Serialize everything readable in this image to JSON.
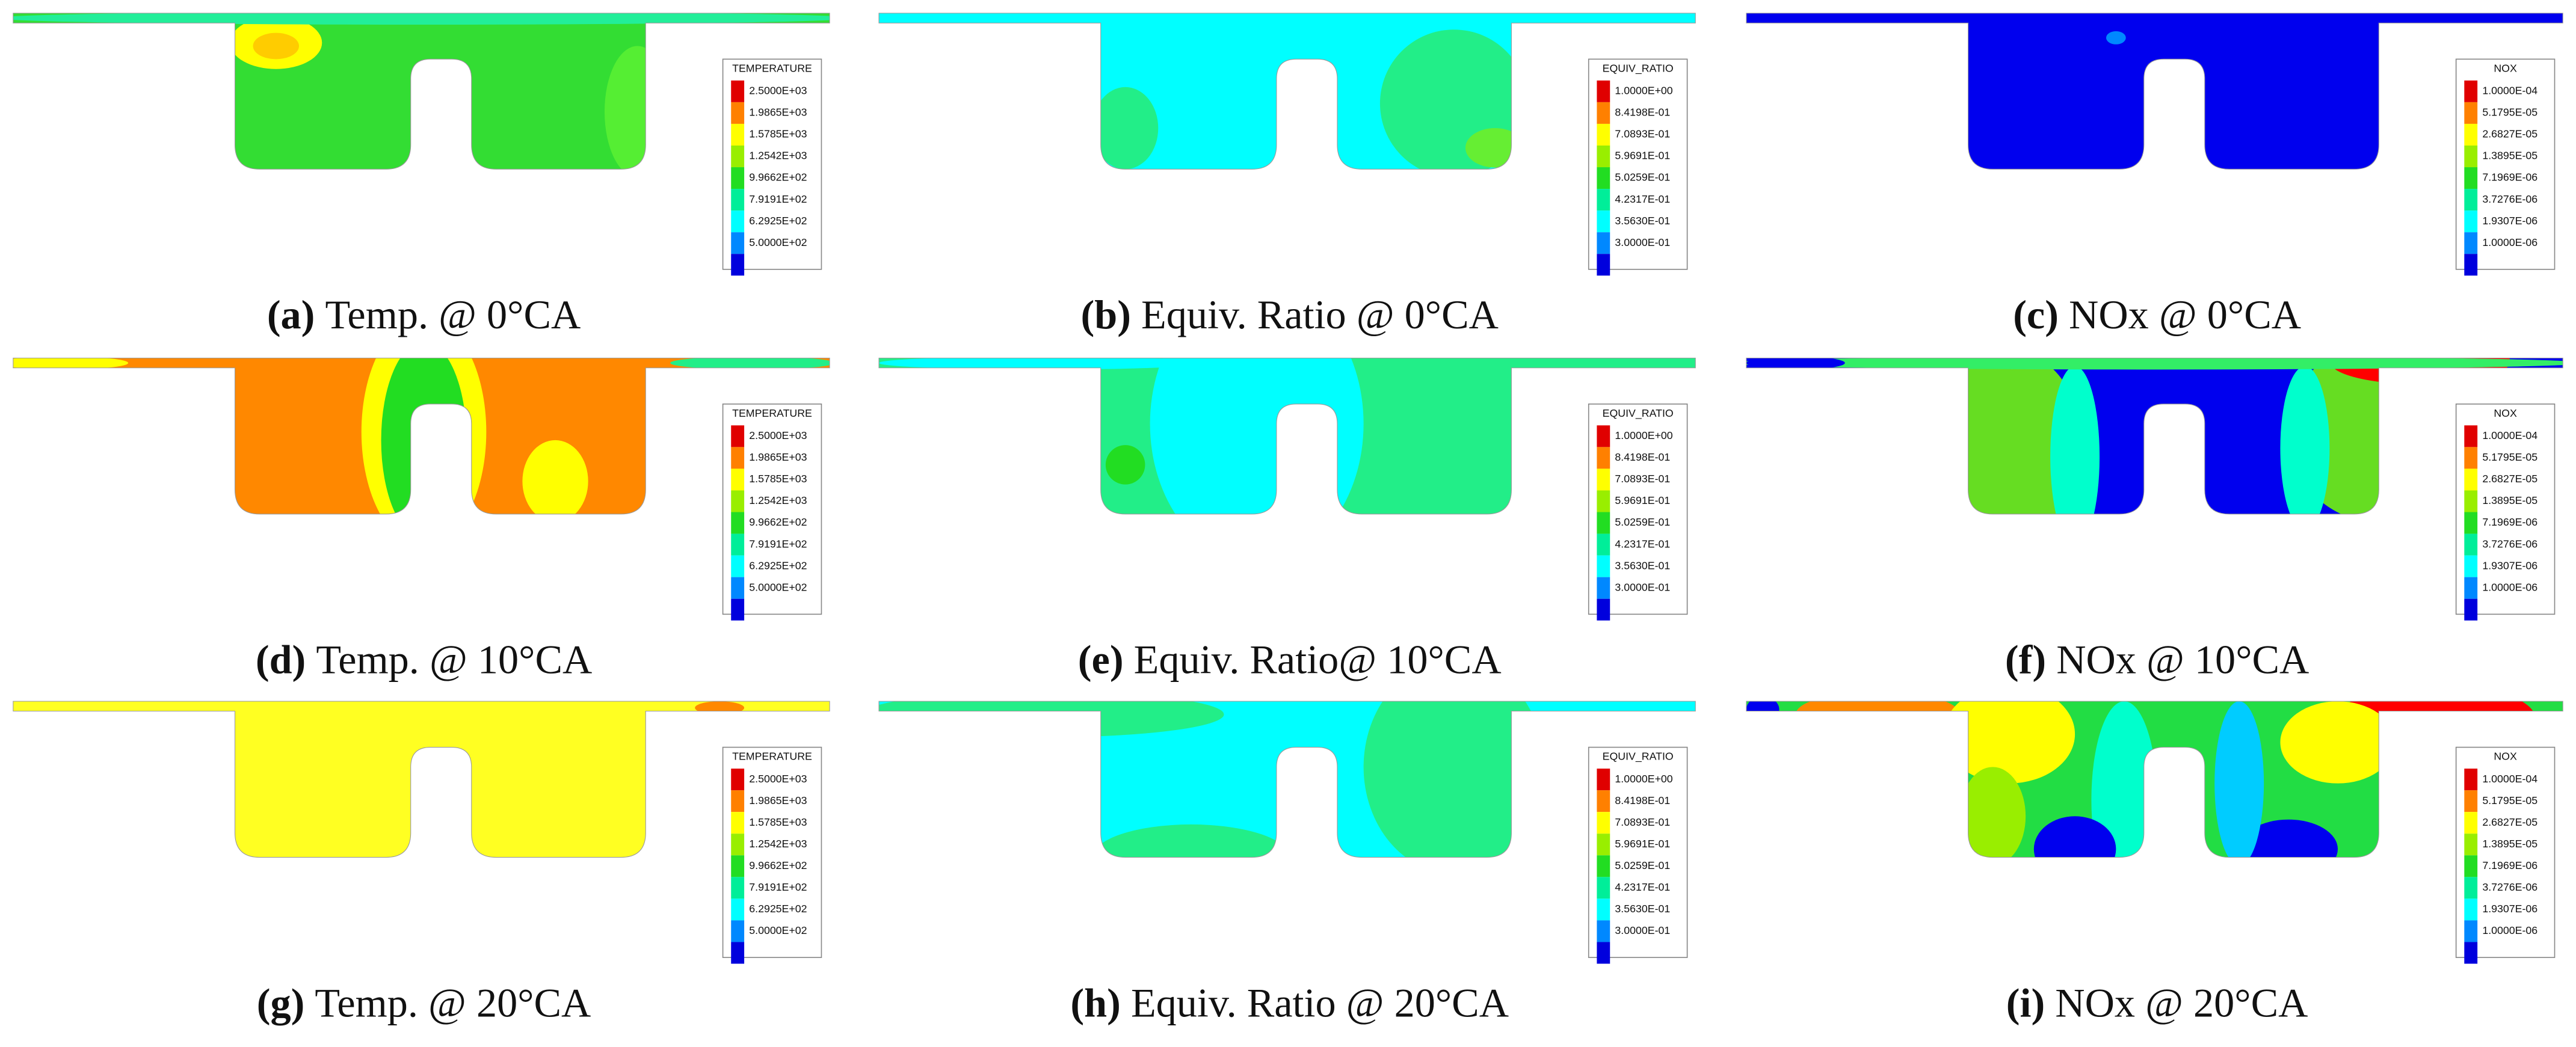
{
  "panels": [
    {
      "tag": "(a)",
      "caption": "Temp. @ 0°CA",
      "legend": {
        "title": "TEMPERATURE",
        "labels": [
          "2.5000E+03",
          "1.9865E+03",
          "1.5785E+03",
          "1.2542E+03",
          "9.9662E+02",
          "7.9191E+02",
          "6.2925E+02",
          "5.0000E+02"
        ]
      }
    },
    {
      "tag": "(b)",
      "caption": "Equiv. Ratio @ 0°CA",
      "legend": {
        "title": "EQUIV_RATIO",
        "labels": [
          "1.0000E+00",
          "8.4198E-01",
          "7.0893E-01",
          "5.9691E-01",
          "5.0259E-01",
          "4.2317E-01",
          "3.5630E-01",
          "3.0000E-01"
        ]
      }
    },
    {
      "tag": "(c)",
      "caption": "NOx @ 0°CA",
      "legend": {
        "title": "NOX",
        "labels": [
          "1.0000E-04",
          "5.1795E-05",
          "2.6827E-05",
          "1.3895E-05",
          "7.1969E-06",
          "3.7276E-06",
          "1.9307E-06",
          "1.0000E-06"
        ]
      }
    },
    {
      "tag": "(d)",
      "caption": "Temp. @ 10°CA",
      "legend": {
        "title": "TEMPERATURE",
        "labels": [
          "2.5000E+03",
          "1.9865E+03",
          "1.5785E+03",
          "1.2542E+03",
          "9.9662E+02",
          "7.9191E+02",
          "6.2925E+02",
          "5.0000E+02"
        ]
      }
    },
    {
      "tag": "(e)",
      "caption": "Equiv. Ratio@ 10°CA",
      "legend": {
        "title": "EQUIV_RATIO",
        "labels": [
          "1.0000E+00",
          "8.4198E-01",
          "7.0893E-01",
          "5.9691E-01",
          "5.0259E-01",
          "4.2317E-01",
          "3.5630E-01",
          "3.0000E-01"
        ]
      }
    },
    {
      "tag": "(f)",
      "caption": "NOx @ 10°CA",
      "legend": {
        "title": "NOX",
        "labels": [
          "1.0000E-04",
          "5.1795E-05",
          "2.6827E-05",
          "1.3895E-05",
          "7.1969E-06",
          "3.7276E-06",
          "1.9307E-06",
          "1.0000E-06"
        ]
      }
    },
    {
      "tag": "(g)",
      "caption": "Temp. @ 20°CA",
      "legend": {
        "title": "TEMPERATURE",
        "labels": [
          "2.5000E+03",
          "1.9865E+03",
          "1.5785E+03",
          "1.2542E+03",
          "9.9662E+02",
          "7.9191E+02",
          "6.2925E+02",
          "5.0000E+02"
        ]
      }
    },
    {
      "tag": "(h)",
      "caption": "Equiv. Ratio @ 20°CA",
      "legend": {
        "title": "EQUIV_RATIO",
        "labels": [
          "1.0000E+00",
          "8.4198E-01",
          "7.0893E-01",
          "5.9691E-01",
          "5.0259E-01",
          "4.2317E-01",
          "3.5630E-01",
          "3.0000E-01"
        ]
      }
    },
    {
      "tag": "(i)",
      "caption": "NOx @ 20°CA",
      "legend": {
        "title": "NOX",
        "labels": [
          "1.0000E-04",
          "5.1795E-05",
          "2.6827E-05",
          "1.3895E-05",
          "7.1969E-06",
          "3.7276E-06",
          "1.9307E-06",
          "1.0000E-06"
        ]
      }
    }
  ]
}
